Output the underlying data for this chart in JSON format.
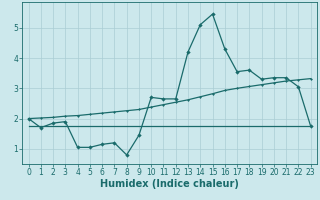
{
  "xlabel": "Humidex (Indice chaleur)",
  "ylabel": "",
  "bg_color": "#cce8ec",
  "grid_color": "#aacdd4",
  "line_color": "#1a6b6b",
  "x_values": [
    0,
    1,
    2,
    3,
    4,
    5,
    6,
    7,
    8,
    9,
    10,
    11,
    12,
    13,
    14,
    15,
    16,
    17,
    18,
    19,
    20,
    21,
    22,
    23
  ],
  "y_main": [
    2.0,
    1.7,
    1.85,
    1.9,
    1.05,
    1.05,
    1.15,
    1.2,
    0.8,
    1.45,
    2.7,
    2.65,
    2.65,
    4.2,
    5.1,
    5.45,
    4.3,
    3.55,
    3.6,
    3.3,
    3.35,
    3.35,
    3.05,
    1.75
  ],
  "y_trend1": [
    2.0,
    2.02,
    2.04,
    2.08,
    2.1,
    2.14,
    2.18,
    2.22,
    2.26,
    2.3,
    2.38,
    2.46,
    2.54,
    2.62,
    2.72,
    2.82,
    2.93,
    3.0,
    3.06,
    3.12,
    3.18,
    3.24,
    3.28,
    3.32
  ],
  "y_trend2": [
    1.77,
    1.77,
    1.77,
    1.77,
    1.77,
    1.77,
    1.77,
    1.77,
    1.77,
    1.77,
    1.77,
    1.77,
    1.77,
    1.77,
    1.77,
    1.77,
    1.77,
    1.77,
    1.77,
    1.77,
    1.77,
    1.77,
    1.77,
    1.77
  ],
  "ylim": [
    0.5,
    5.85
  ],
  "xlim": [
    -0.5,
    23.5
  ],
  "yticks": [
    1,
    2,
    3,
    4,
    5
  ],
  "xticks": [
    0,
    1,
    2,
    3,
    4,
    5,
    6,
    7,
    8,
    9,
    10,
    11,
    12,
    13,
    14,
    15,
    16,
    17,
    18,
    19,
    20,
    21,
    22,
    23
  ],
  "tick_label_size": 5.5,
  "xlabel_size": 7.0,
  "marker": "D",
  "marker_size": 2.2,
  "linewidth": 0.9
}
